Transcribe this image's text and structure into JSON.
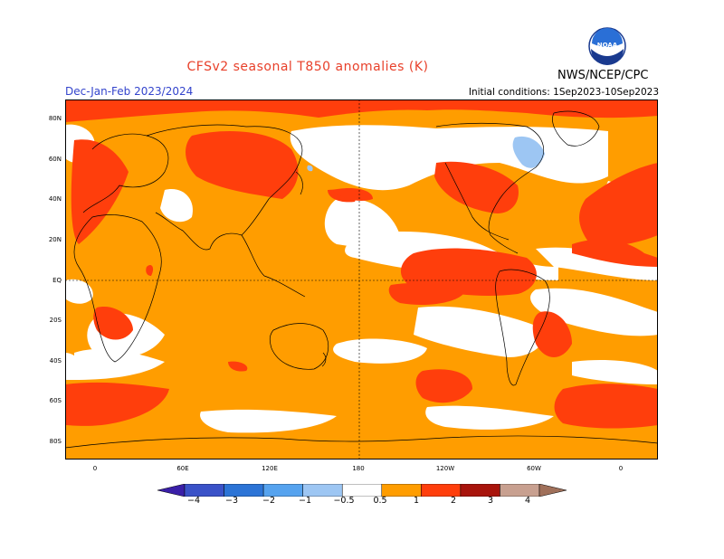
{
  "header": {
    "title": "CFSv2 seasonal T850 anomalies (K)",
    "period": "Dec-Jan-Feb 2023/2024",
    "initial_conditions": "Initial conditions: 1Sep2023-10Sep2023",
    "org": "NWS/NCEP/CPC",
    "logo_text": "NOAA"
  },
  "axes": {
    "lat_labels": [
      "80N",
      "60N",
      "40N",
      "20N",
      "EQ",
      "20S",
      "40S",
      "60S",
      "80S"
    ],
    "lon_labels": [
      "0",
      "60E",
      "120E",
      "180",
      "120W",
      "60W",
      "0"
    ]
  },
  "colorbar": {
    "labels": [
      "−4",
      "−3",
      "−2",
      "−1",
      "−0.5",
      "0.5",
      "1",
      "2",
      "3",
      "4"
    ],
    "colors": [
      "#3a1fa8",
      "#3a52c8",
      "#2c74d6",
      "#56a3ef",
      "#9dc6f3",
      "#ffffff",
      "#ff9d00",
      "#ff3e0c",
      "#a8140c",
      "#c8a090",
      "#a0705a"
    ]
  },
  "colors": {
    "orange": "#ff9d00",
    "red": "#ff3e0c",
    "lightblue": "#9dc6f3",
    "coast": "#000000"
  }
}
